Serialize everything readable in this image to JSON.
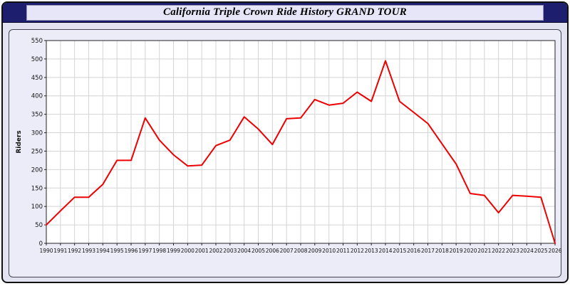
{
  "header": {
    "title": "California Triple Crown Ride History GRAND TOUR"
  },
  "colors": {
    "titlebar_bg": "#1e1e6e",
    "title_box_bg": "#e6e6f8",
    "panel_bg": "#ececf8",
    "plot_bg": "#ffffff",
    "grid": "#d4d4d4",
    "line": "#ee0000"
  },
  "chart_data": {
    "type": "line",
    "title": "California Triple Crown Ride History GRAND TOUR",
    "xlabel": "",
    "ylabel": "Riders",
    "ylim": [
      0,
      550
    ],
    "ytick_step": 50,
    "grid": true,
    "legend": "none",
    "x": [
      1990,
      1991,
      1992,
      1993,
      1994,
      1995,
      1996,
      1997,
      1998,
      1999,
      2000,
      2001,
      2002,
      2003,
      2004,
      2005,
      2006,
      2007,
      2008,
      2009,
      2010,
      2011,
      2012,
      2013,
      2014,
      2015,
      2016,
      2017,
      2018,
      2019,
      2020,
      2021,
      2022,
      2023,
      2024,
      2025,
      2026
    ],
    "series": [
      {
        "name": "Riders",
        "color": "#ee0000",
        "values": [
          50,
          88,
          125,
          125,
          160,
          225,
          225,
          340,
          280,
          240,
          210,
          212,
          265,
          280,
          343,
          310,
          268,
          338,
          340,
          390,
          375,
          380,
          410,
          385,
          495,
          385,
          355,
          325,
          270,
          215,
          135,
          130,
          83,
          130,
          128,
          125,
          0
        ]
      }
    ]
  }
}
